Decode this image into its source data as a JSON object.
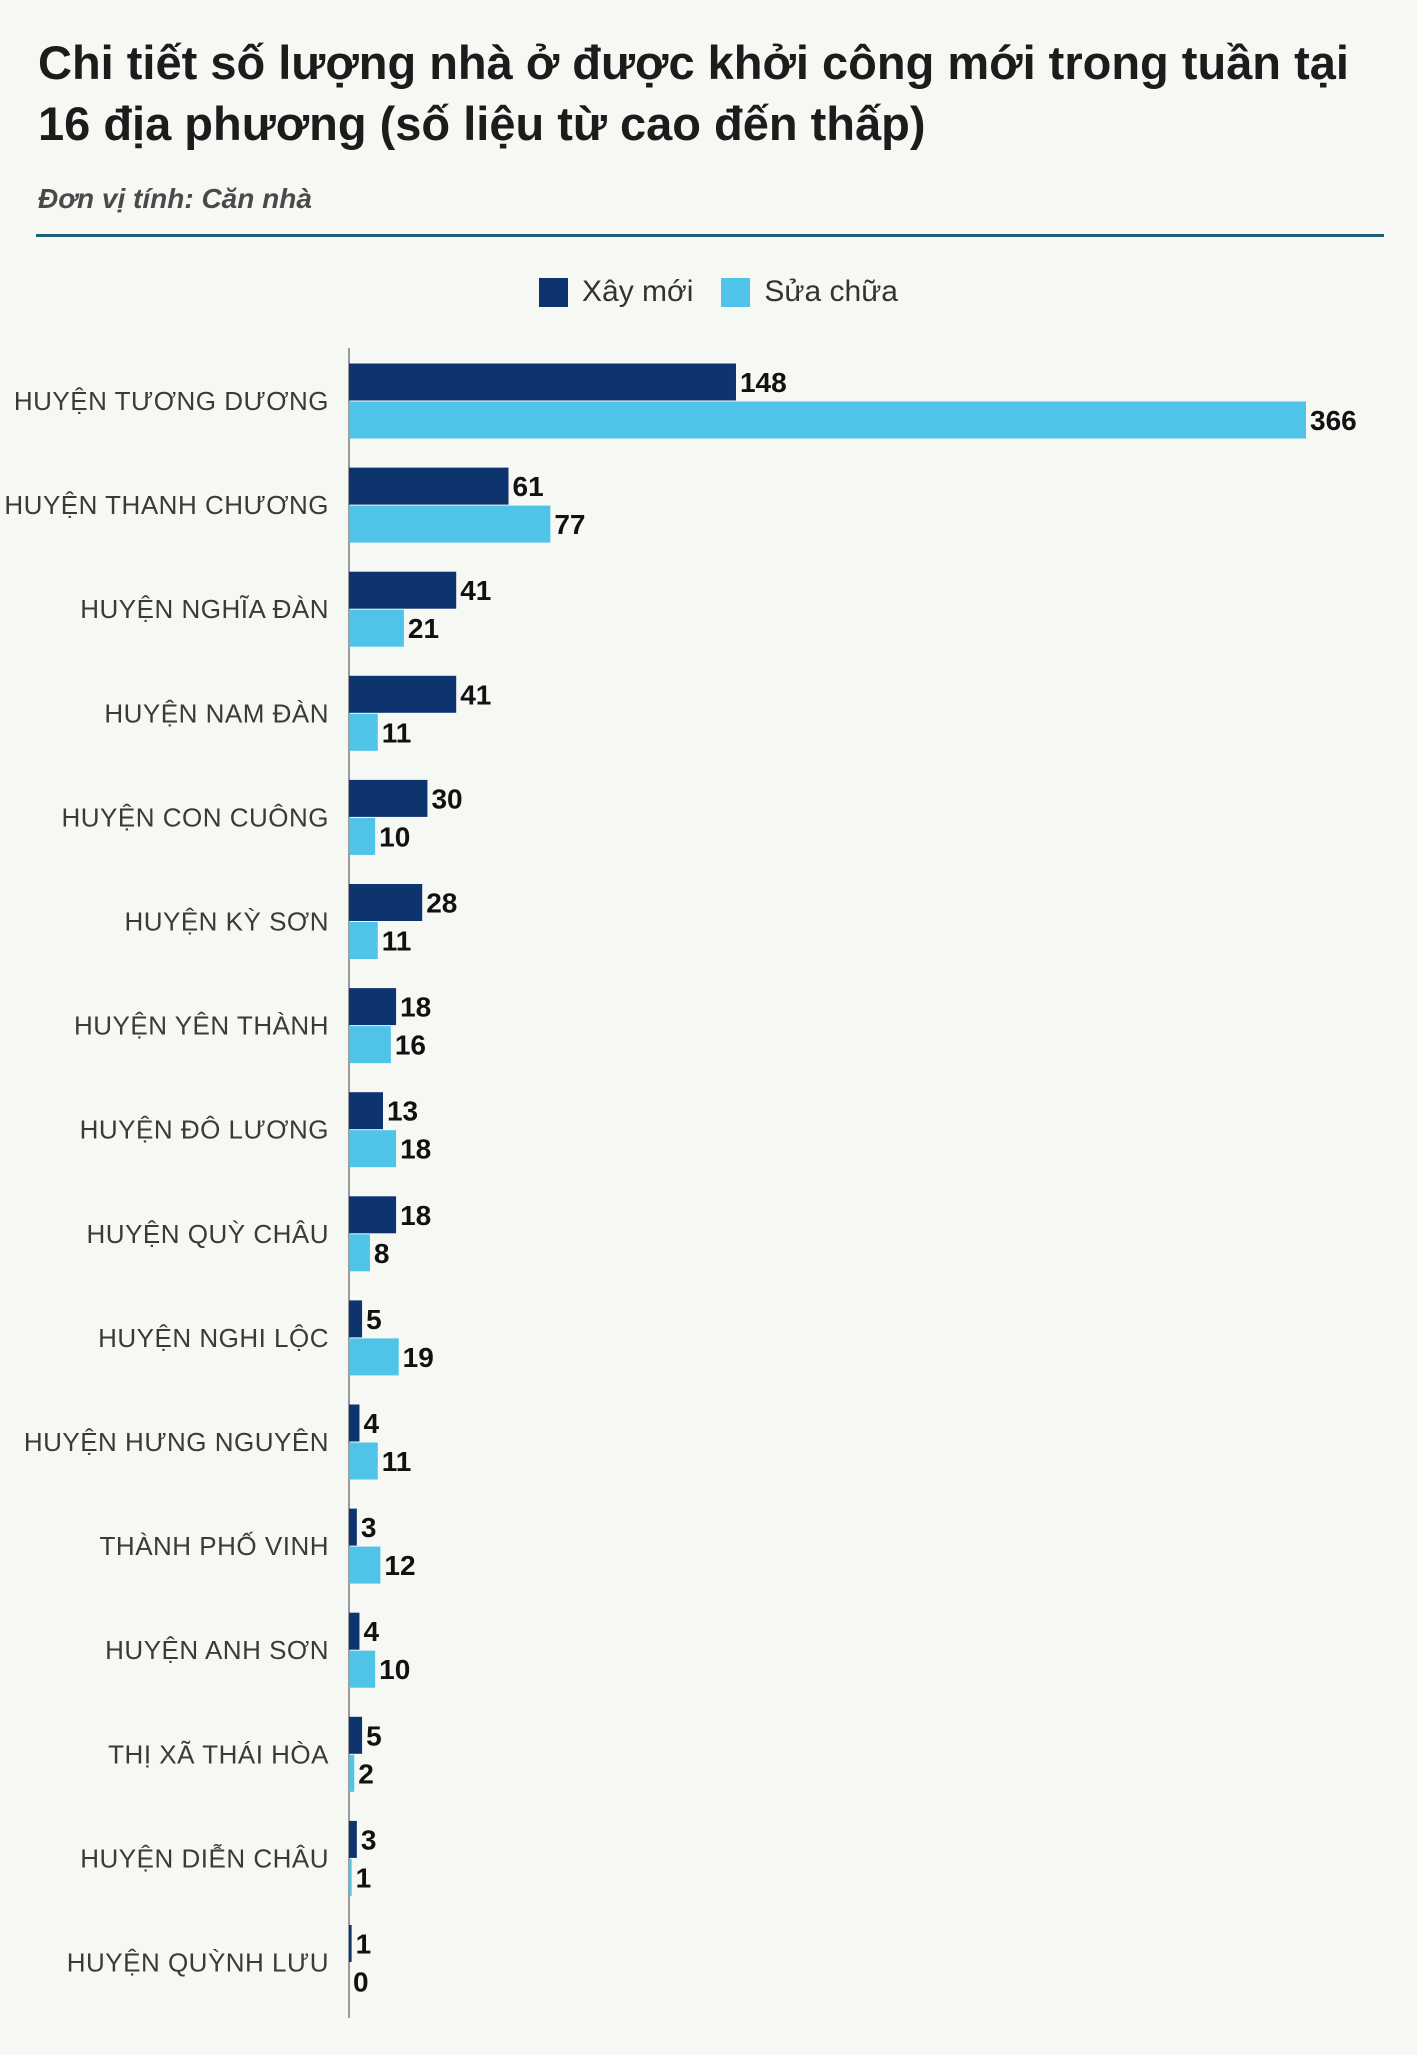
{
  "header": {
    "title": "Chi tiết số lượng nhà ở được khởi công mới trong tuần tại 16 địa phương (số liệu từ cao đến thấp)",
    "unit": "Đơn vị tính: Căn nhà"
  },
  "chart_data": {
    "type": "bar",
    "orientation": "horizontal",
    "title": "Chi tiết số lượng nhà ở được khởi công mới trong tuần tại 16 địa phương (số liệu từ cao đến thấp)",
    "subtitle": "Đơn vị tính: Căn nhà",
    "legend_position": "top-center",
    "grid": false,
    "xlim": [
      0,
      366
    ],
    "categories": [
      "HUYỆN TƯƠNG DƯƠNG",
      "HUYỆN THANH CHƯƠNG",
      "HUYỆN NGHĨA ĐÀN",
      "HUYỆN NAM ĐÀN",
      "HUYỆN CON CUÔNG",
      "HUYỆN KỲ SƠN",
      "HUYỆN YÊN THÀNH",
      "HUYỆN ĐÔ LƯƠNG",
      "HUYỆN QUỲ CHÂU",
      "HUYỆN NGHI LỘC",
      "HUYỆN HƯNG NGUYÊN",
      "THÀNH PHỐ VINH",
      "HUYỆN ANH SƠN",
      "THỊ XÃ THÁI HÒA",
      "HUYỆN DIỄN CHÂU",
      "HUYỆN QUỲNH LƯU"
    ],
    "series": [
      {
        "name": "Xây mới",
        "color": "#0e3470",
        "values": [
          148,
          61,
          41,
          41,
          30,
          28,
          18,
          13,
          18,
          5,
          4,
          3,
          4,
          5,
          3,
          1
        ]
      },
      {
        "name": "Sửa chữa",
        "color": "#4fc3e8",
        "values": [
          366,
          77,
          21,
          11,
          10,
          11,
          16,
          18,
          8,
          19,
          11,
          12,
          10,
          2,
          1,
          0
        ]
      }
    ]
  }
}
